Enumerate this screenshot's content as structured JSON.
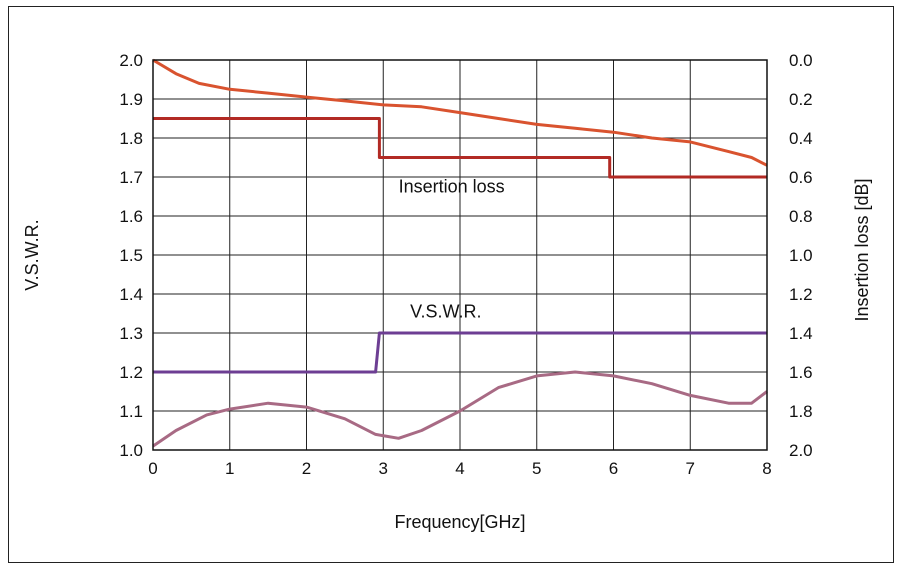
{
  "chart_data": {
    "type": "line",
    "xlabel": "Frequency[GHz]",
    "ylabel_left": "V.S.W.R.",
    "ylabel_right": "Insertion loss [dB]",
    "xlim": [
      0,
      8
    ],
    "ylim_left": [
      1.0,
      2.0
    ],
    "ylim_right": [
      2.0,
      0.0
    ],
    "grid": true,
    "x_ticks": [
      "0",
      "1",
      "2",
      "3",
      "4",
      "5",
      "6",
      "7",
      "8"
    ],
    "y_left_ticks": [
      "1.0",
      "1.1",
      "1.2",
      "1.3",
      "1.4",
      "1.5",
      "1.6",
      "1.7",
      "1.8",
      "1.9",
      "2.0"
    ],
    "y_right_ticks": [
      "2.0",
      "1.8",
      "1.6",
      "1.4",
      "1.2",
      "1.0",
      "0.8",
      "0.6",
      "0.4",
      "0.2",
      "0.0"
    ],
    "annotations": [
      {
        "text": "Insertion loss",
        "x": 3.2,
        "y_left": 1.66
      },
      {
        "text": "V.S.W.R.",
        "x": 3.35,
        "y_left": 1.34
      }
    ],
    "series": [
      {
        "axis": "right",
        "color": "#b22a24",
        "x": [
          0,
          2.95,
          2.95,
          5.95,
          5.95,
          8
        ],
        "values": [
          0.3,
          0.3,
          0.5,
          0.5,
          0.6,
          0.6
        ]
      },
      {
        "axis": "right",
        "color": "#d9532f",
        "x": [
          0,
          0.3,
          0.6,
          1,
          1.5,
          2,
          2.5,
          3,
          3.5,
          4,
          4.5,
          5,
          5.5,
          6,
          6.5,
          7,
          7.5,
          7.8,
          8
        ],
        "values": [
          0.0,
          0.07,
          0.12,
          0.15,
          0.17,
          0.19,
          0.21,
          0.23,
          0.24,
          0.27,
          0.3,
          0.33,
          0.35,
          0.37,
          0.4,
          0.42,
          0.47,
          0.5,
          0.54
        ]
      },
      {
        "axis": "left",
        "color": "#6d3e93",
        "x": [
          0,
          2.9,
          2.95,
          8
        ],
        "values": [
          1.2,
          1.2,
          1.3,
          1.3
        ]
      },
      {
        "axis": "left",
        "color": "#a86a84",
        "x": [
          0,
          0.3,
          0.7,
          1,
          1.5,
          2,
          2.5,
          2.9,
          3.2,
          3.5,
          4,
          4.5,
          5,
          5.5,
          6,
          6.5,
          7,
          7.5,
          7.8,
          8
        ],
        "values": [
          1.01,
          1.05,
          1.09,
          1.105,
          1.12,
          1.11,
          1.08,
          1.04,
          1.03,
          1.05,
          1.1,
          1.16,
          1.19,
          1.2,
          1.19,
          1.17,
          1.14,
          1.12,
          1.12,
          1.15
        ]
      }
    ]
  }
}
